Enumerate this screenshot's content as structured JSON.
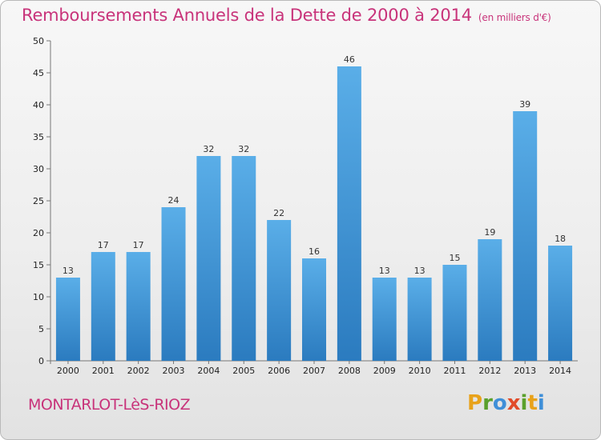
{
  "header": {
    "title": "Remboursements Annuels de la Dette de 2000 à 2014",
    "subtitle": "(en milliers d'€)"
  },
  "footer": {
    "town": "MONTARLOT-LèS-RIOZ",
    "logo": "Proxiti"
  },
  "colors": {
    "title": "#c8337a",
    "bar_top": "#5aaee8",
    "bar_bottom": "#2b7bbf",
    "logo_letters": [
      "#e8a21a",
      "#5aa02c",
      "#3f8fd8",
      "#e14b2a",
      "#5aa02c",
      "#e8a21a",
      "#3f8fd8"
    ]
  },
  "chart_data": {
    "type": "bar",
    "categories": [
      "2000",
      "2001",
      "2002",
      "2003",
      "2004",
      "2005",
      "2006",
      "2007",
      "2008",
      "2009",
      "2010",
      "2011",
      "2012",
      "2013",
      "2014"
    ],
    "values": [
      13,
      17,
      17,
      24,
      32,
      32,
      22,
      16,
      46,
      13,
      13,
      15,
      19,
      39,
      18
    ],
    "title": "Remboursements Annuels de la Dette de 2000 à 2014",
    "ylim": [
      0,
      50
    ],
    "yticks": [
      0,
      5,
      10,
      15,
      20,
      25,
      30,
      35,
      40,
      45,
      50
    ],
    "grid": false
  }
}
